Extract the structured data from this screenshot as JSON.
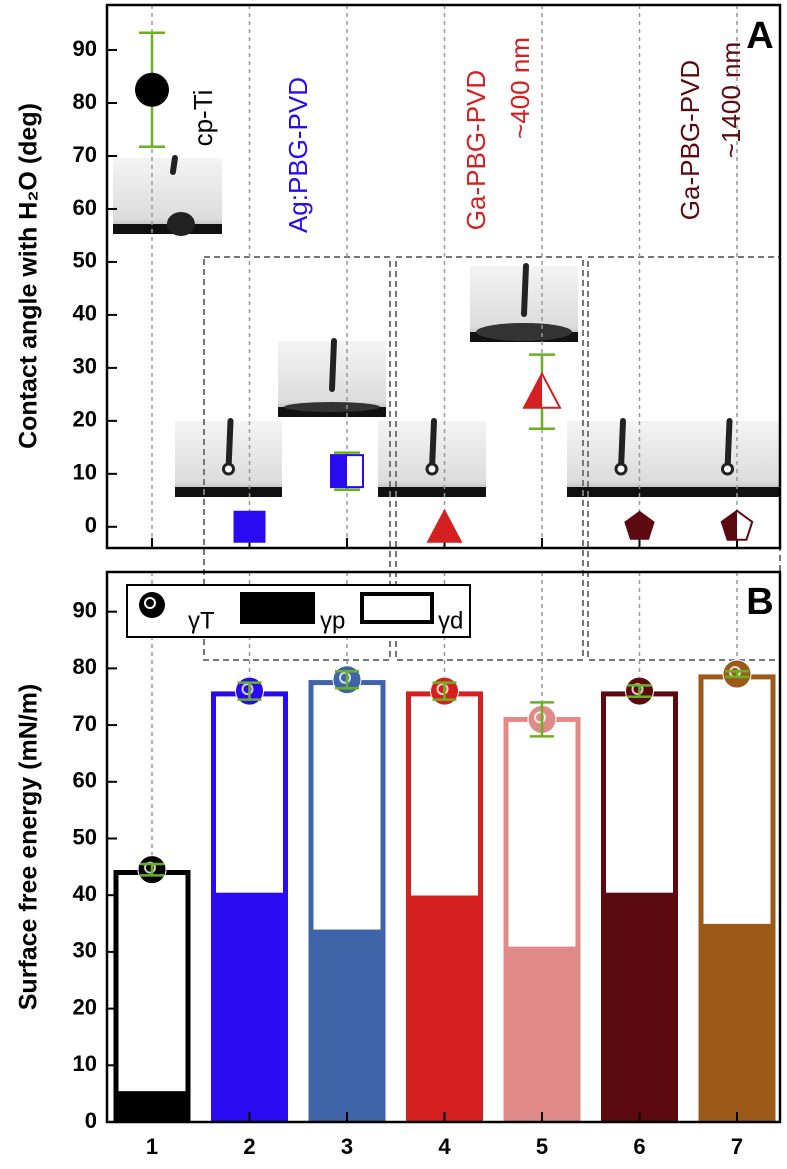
{
  "chart_data": [
    {
      "type": "dot",
      "y_label": "Contact angle with H₂O (deg)",
      "panel_label": "A",
      "ylim": [
        -4,
        98.5
      ],
      "yticks": [
        0,
        10,
        20,
        30,
        40,
        50,
        60,
        70,
        80,
        90
      ],
      "values": [
        82.5,
        0,
        10.5,
        0,
        25.5,
        0,
        0
      ],
      "errors": [
        10.75,
        null,
        3.5,
        null,
        7,
        null,
        null
      ],
      "colors": [
        "#000000",
        "#2a0af0",
        "#2a0af0",
        "#d42020",
        "#d42020",
        "#5c0a10",
        "#5c0a10"
      ],
      "markers": [
        "circle",
        "square",
        "half-square",
        "triangle",
        "half-triangle",
        "pentagon",
        "half-pentagon"
      ],
      "error_color": "#6ab023",
      "annotations": [
        {
          "text": "cp-Ti",
          "color": "#000000"
        },
        {
          "text": "Ag:PBG-PVD",
          "color": "#2a0af0"
        },
        {
          "text": "Ga-PBG-PVD",
          "color": "#d42020"
        },
        {
          "text": "~400 nm",
          "color": "#d42020"
        },
        {
          "text": "Ga-PBG-PVD",
          "color": "#5c0a10"
        },
        {
          "text": "~1400 nm",
          "color": "#5c0a10"
        }
      ]
    },
    {
      "type": "bar",
      "y_label": "Surface free energy (mN/m)",
      "panel_label": "B",
      "categories": [
        "1",
        "2",
        "3",
        "4",
        "5",
        "6",
        "7"
      ],
      "ylim": [
        0,
        97
      ],
      "yticks": [
        0,
        10,
        20,
        30,
        40,
        50,
        60,
        70,
        80,
        90
      ],
      "colors": [
        "#000000",
        "#2a0af0",
        "#4064a8",
        "#d42020",
        "#e08a8a",
        "#5c0a10",
        "#9c5a1a"
      ],
      "error_color": "#6ab023",
      "series": [
        {
          "name": "γT",
          "values": [
            44.5,
            76,
            78,
            76,
            71,
            76,
            79
          ],
          "errors": [
            1,
            1.5,
            1.5,
            1.5,
            3,
            1,
            0.5
          ]
        },
        {
          "name": "γp",
          "values": [
            5,
            40,
            33.5,
            39.5,
            30.5,
            40,
            34.5
          ]
        },
        {
          "name": "γd",
          "values": [
            39,
            35.5,
            44,
            36,
            40.5,
            35.5,
            44
          ]
        }
      ]
    }
  ]
}
